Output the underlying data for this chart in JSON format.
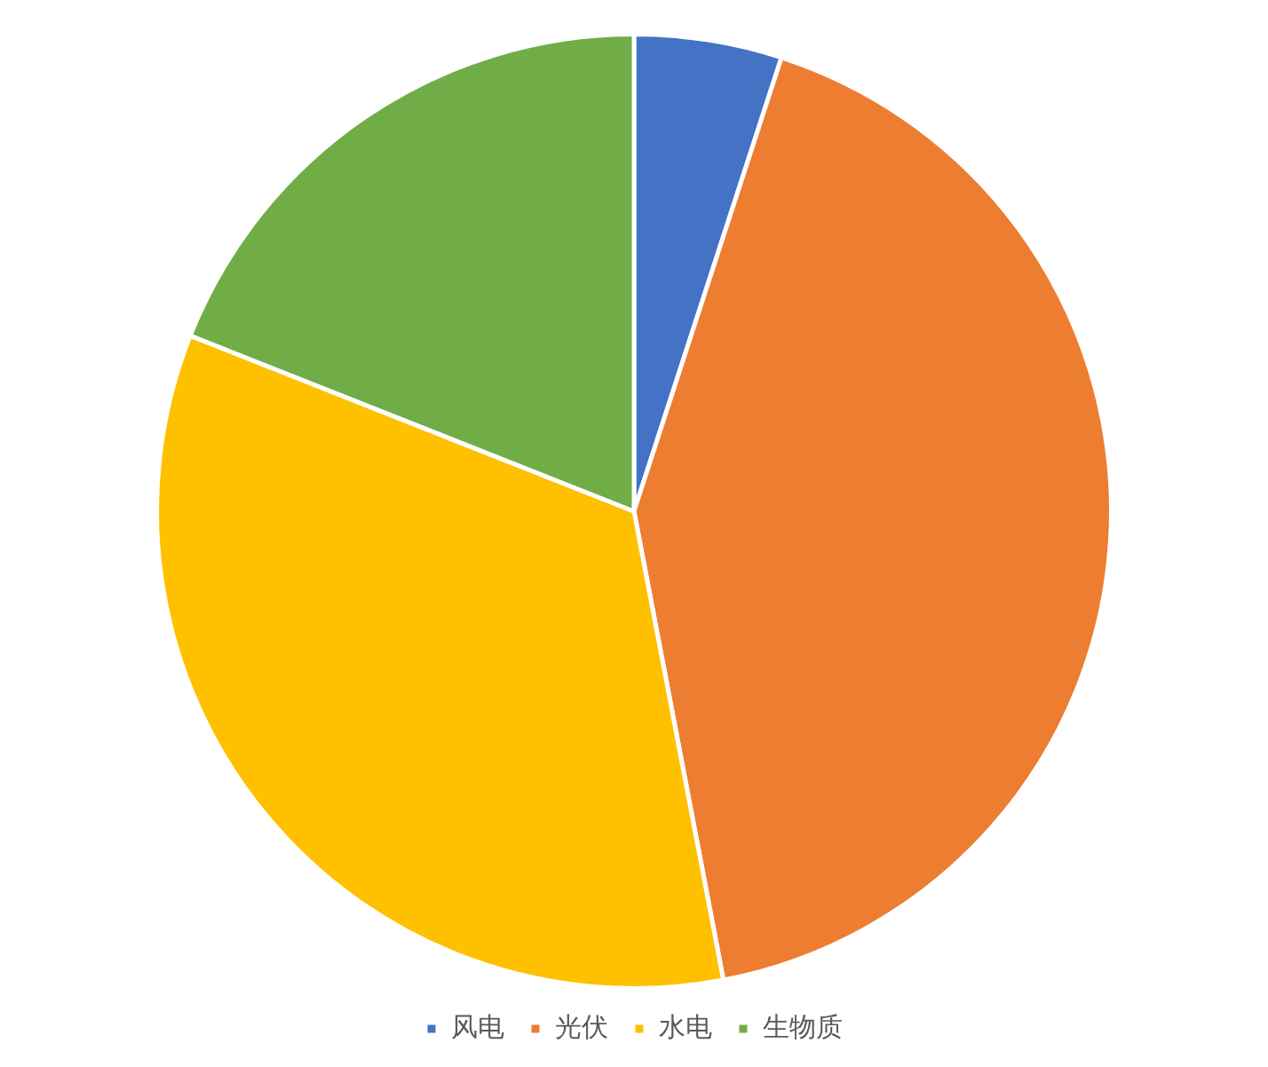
{
  "chart_data": {
    "type": "pie",
    "categories": [
      "风电",
      "光伏",
      "水电",
      "生物质"
    ],
    "values": [
      5,
      42,
      34,
      19
    ],
    "colors": [
      "#4472c4",
      "#ed7d31",
      "#ffc000",
      "#70ad47"
    ],
    "legend": "bottom"
  }
}
